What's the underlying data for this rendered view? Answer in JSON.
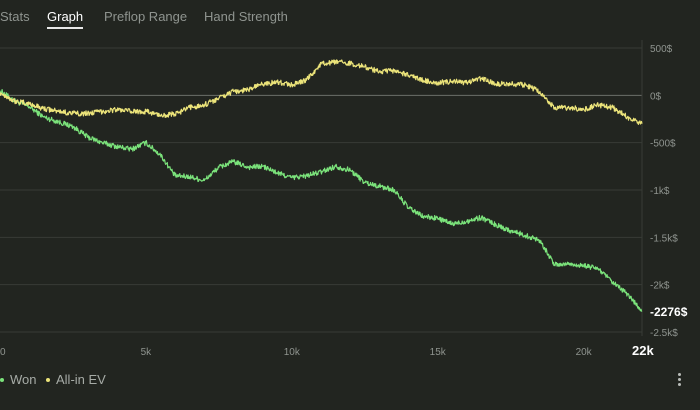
{
  "tabs": [
    {
      "label": "Stats"
    },
    {
      "label": "Graph"
    },
    {
      "label": "Preflop Range"
    },
    {
      "label": "Hand Strength"
    }
  ],
  "active_tab": "Graph",
  "colors": {
    "background": "#222520",
    "won": "#7be37b",
    "allin_ev": "#ece47a",
    "grid": "#383b36",
    "zero_line": "#6b6f69"
  },
  "legend": [
    {
      "label": "Won",
      "color": "#7be37b"
    },
    {
      "label": "All-in EV",
      "color": "#ece47a"
    }
  ],
  "end_label": "-2276$",
  "x_max_label": "22k",
  "chart_data": {
    "type": "line",
    "x_ticks": [
      "0",
      "5k",
      "10k",
      "15k",
      "20k"
    ],
    "y_ticks": [
      "500$",
      "0$",
      "-500$",
      "-1k$",
      "-1.5k$",
      "-2k$",
      "-2.5k$"
    ],
    "xlim": [
      0,
      22000
    ],
    "ylim": [
      -2500,
      500
    ],
    "grid": true,
    "legend_position": "bottom-left",
    "series": [
      {
        "name": "Won",
        "color": "#7be37b",
        "points": [
          [
            0,
            50
          ],
          [
            500,
            -60
          ],
          [
            1000,
            -120
          ],
          [
            1500,
            -230
          ],
          [
            2000,
            -280
          ],
          [
            2500,
            -330
          ],
          [
            3000,
            -440
          ],
          [
            3500,
            -500
          ],
          [
            4000,
            -540
          ],
          [
            4500,
            -570
          ],
          [
            5000,
            -500
          ],
          [
            5500,
            -630
          ],
          [
            6000,
            -850
          ],
          [
            6500,
            -860
          ],
          [
            7000,
            -900
          ],
          [
            7500,
            -760
          ],
          [
            8000,
            -700
          ],
          [
            8500,
            -760
          ],
          [
            9000,
            -750
          ],
          [
            9500,
            -820
          ],
          [
            10000,
            -870
          ],
          [
            10500,
            -850
          ],
          [
            11000,
            -810
          ],
          [
            11500,
            -750
          ],
          [
            12000,
            -790
          ],
          [
            12500,
            -920
          ],
          [
            13000,
            -960
          ],
          [
            13500,
            -1000
          ],
          [
            14000,
            -1190
          ],
          [
            14500,
            -1280
          ],
          [
            15000,
            -1300
          ],
          [
            15500,
            -1360
          ],
          [
            16000,
            -1330
          ],
          [
            16500,
            -1290
          ],
          [
            17000,
            -1370
          ],
          [
            17500,
            -1430
          ],
          [
            18000,
            -1480
          ],
          [
            18500,
            -1530
          ],
          [
            19000,
            -1790
          ],
          [
            19500,
            -1780
          ],
          [
            20000,
            -1800
          ],
          [
            20500,
            -1830
          ],
          [
            21000,
            -1980
          ],
          [
            21500,
            -2100
          ],
          [
            22000,
            -2276
          ]
        ]
      },
      {
        "name": "All-in EV",
        "color": "#ece47a",
        "points": [
          [
            0,
            30
          ],
          [
            500,
            -60
          ],
          [
            1000,
            -90
          ],
          [
            1500,
            -140
          ],
          [
            2000,
            -170
          ],
          [
            2500,
            -190
          ],
          [
            3000,
            -190
          ],
          [
            3500,
            -170
          ],
          [
            4000,
            -150
          ],
          [
            4500,
            -170
          ],
          [
            5000,
            -170
          ],
          [
            5500,
            -210
          ],
          [
            6000,
            -200
          ],
          [
            6500,
            -130
          ],
          [
            7000,
            -100
          ],
          [
            7500,
            -30
          ],
          [
            8000,
            40
          ],
          [
            8500,
            60
          ],
          [
            9000,
            120
          ],
          [
            9500,
            140
          ],
          [
            10000,
            110
          ],
          [
            10500,
            160
          ],
          [
            11000,
            330
          ],
          [
            11500,
            350
          ],
          [
            12000,
            340
          ],
          [
            12500,
            300
          ],
          [
            13000,
            250
          ],
          [
            13500,
            260
          ],
          [
            14000,
            210
          ],
          [
            14500,
            160
          ],
          [
            15000,
            130
          ],
          [
            15500,
            150
          ],
          [
            16000,
            130
          ],
          [
            16500,
            180
          ],
          [
            17000,
            120
          ],
          [
            17500,
            120
          ],
          [
            18000,
            110
          ],
          [
            18500,
            40
          ],
          [
            19000,
            -130
          ],
          [
            19500,
            -130
          ],
          [
            20000,
            -150
          ],
          [
            20500,
            -100
          ],
          [
            21000,
            -130
          ],
          [
            21500,
            -230
          ],
          [
            22000,
            -300
          ]
        ]
      }
    ]
  }
}
